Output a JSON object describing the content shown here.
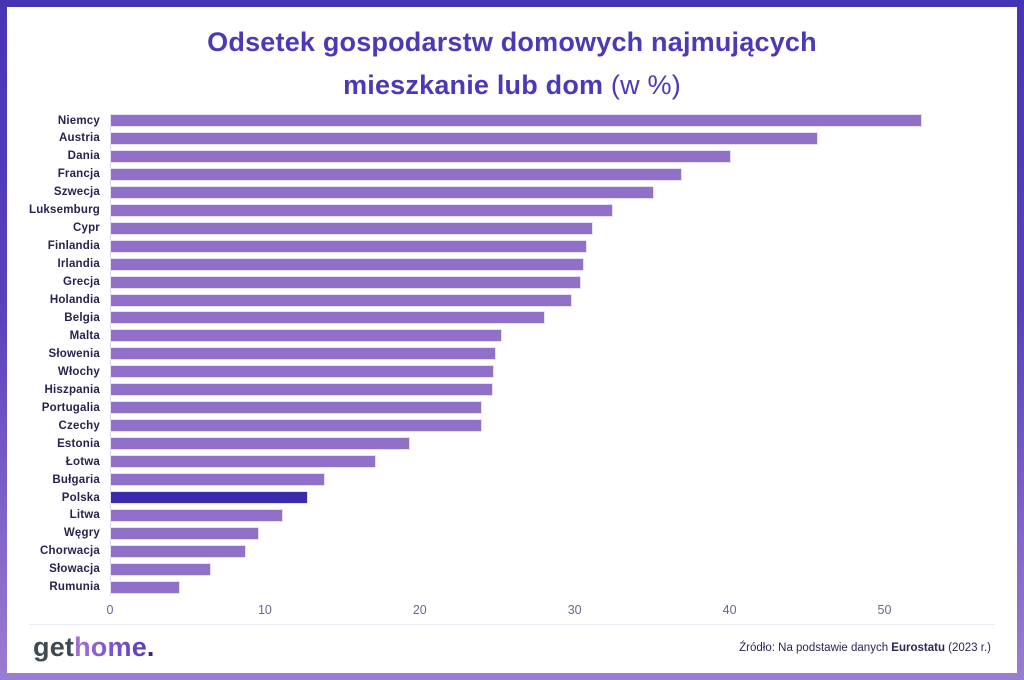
{
  "title": {
    "line1": "Odsetek gospodarstw domowych najmujących",
    "line2_bold": "mieszkanie lub dom",
    "line2_regular": " (w %)",
    "color": "#4a3ab8"
  },
  "chart_data": {
    "type": "bar",
    "orientation": "horizontal",
    "title": "Odsetek gospodarstw domowych najmujących mieszkanie lub dom (w %)",
    "categories": [
      "Niemcy",
      "Austria",
      "Dania",
      "Francja",
      "Szwecja",
      "Luksemburg",
      "Cypr",
      "Finlandia",
      "Irlandia",
      "Grecja",
      "Holandia",
      "Belgia",
      "Malta",
      "Słowenia",
      "Włochy",
      "Hiszpania",
      "Portugalia",
      "Czechy",
      "Estonia",
      "Łotwa",
      "Bułgaria",
      "Polska",
      "Litwa",
      "Węgry",
      "Chorwacja",
      "Słowacja",
      "Rumunia"
    ],
    "values": [
      52.4,
      45.7,
      40.1,
      36.9,
      35.1,
      32.5,
      31.2,
      30.8,
      30.6,
      30.4,
      29.8,
      28.1,
      25.3,
      24.9,
      24.8,
      24.7,
      24.0,
      24.0,
      19.4,
      17.2,
      13.9,
      12.8,
      11.2,
      9.6,
      8.8,
      6.5,
      4.5
    ],
    "x_ticks": [
      0,
      10,
      20,
      30,
      40,
      50
    ],
    "xlim": [
      0,
      57.2
    ],
    "grid": false,
    "legend": false,
    "bar_color": "#9070c8",
    "highlight_category": "Polska",
    "highlight_color": "#3a2bad",
    "label_color": "#2b2150",
    "tick_color": "#6b6590"
  },
  "footer": {
    "logo": {
      "part1": "get",
      "part2": "home",
      "dot": "."
    },
    "source": {
      "prefix": "Źródło: Na podstawie danych ",
      "bold": "Eurostatu",
      "suffix": " (2023 r.)"
    }
  },
  "frame": {
    "border_gradient_top": "#4634b6",
    "border_gradient_bottom": "#9b7dd0",
    "background": "#ffffff"
  }
}
